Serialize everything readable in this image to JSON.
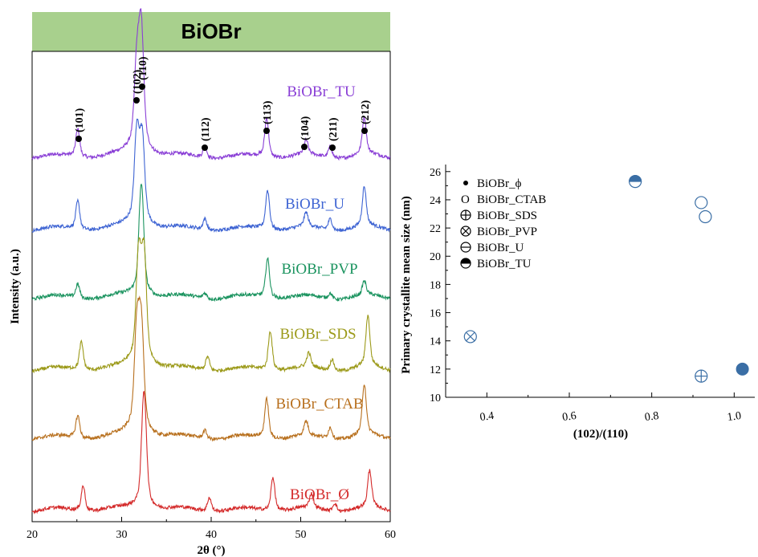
{
  "chart_data": [
    {
      "type": "line",
      "title": "BiOBr",
      "xlabel": "2θ (°)",
      "ylabel": "Intensity (a.u.)",
      "xlim": [
        20,
        60
      ],
      "x_ticks": [
        "20",
        "30",
        "40",
        "50",
        "60"
      ],
      "grid": false,
      "legend": "inline labels",
      "series": [
        {
          "name": "BiOBr_TU",
          "color": "#8A3FD6",
          "peaks": [
            [
              25.1,
              0.1
            ],
            [
              31.7,
              0.3
            ],
            [
              32.2,
              0.42
            ],
            [
              39.3,
              0.04
            ],
            [
              46.2,
              0.14
            ],
            [
              50.6,
              0.05
            ],
            [
              53.3,
              0.04
            ],
            [
              57.1,
              0.13
            ]
          ]
        },
        {
          "name": "BiOBr_U",
          "color": "#3E64D3",
          "peaks": [
            [
              25.1,
              0.1
            ],
            [
              31.7,
              0.32
            ],
            [
              32.3,
              0.3
            ],
            [
              39.3,
              0.04
            ],
            [
              46.3,
              0.14
            ],
            [
              50.6,
              0.05
            ],
            [
              53.3,
              0.04
            ],
            [
              57.1,
              0.14
            ]
          ]
        },
        {
          "name": "BiOBr_PVP",
          "color": "#1C9460",
          "peaks": [
            [
              25.1,
              0.05
            ],
            [
              32.2,
              0.4
            ],
            [
              39.3,
              0.02
            ],
            [
              46.3,
              0.14
            ],
            [
              53.3,
              0.02
            ],
            [
              57.1,
              0.05
            ]
          ]
        },
        {
          "name": "BiOBr_SDS",
          "color": "#9C9A1A",
          "peaks": [
            [
              25.5,
              0.1
            ],
            [
              31.9,
              0.38
            ],
            [
              32.5,
              0.38
            ],
            [
              39.6,
              0.05
            ],
            [
              46.6,
              0.14
            ],
            [
              50.9,
              0.05
            ],
            [
              53.5,
              0.04
            ],
            [
              57.5,
              0.18
            ]
          ]
        },
        {
          "name": "BiOBr_CTAB",
          "color": "#B8701E",
          "peaks": [
            [
              25.1,
              0.08
            ],
            [
              31.7,
              0.36
            ],
            [
              32.2,
              0.36
            ],
            [
              39.3,
              0.03
            ],
            [
              46.2,
              0.14
            ],
            [
              50.6,
              0.05
            ],
            [
              53.3,
              0.04
            ],
            [
              57.1,
              0.18
            ]
          ]
        },
        {
          "name": "BiOBr_Ø",
          "color": "#D42A2A",
          "peaks": [
            [
              25.7,
              0.09
            ],
            [
              32.5,
              0.42
            ],
            [
              39.8,
              0.05
            ],
            [
              46.9,
              0.12
            ],
            [
              51.2,
              0.05
            ],
            [
              53.8,
              0.03
            ],
            [
              57.7,
              0.13
            ]
          ]
        }
      ],
      "annotations": [
        {
          "text": "(101)",
          "x": 25.1
        },
        {
          "text": "(102)",
          "x": 31.6
        },
        {
          "text": "(110)",
          "x": 32.3
        },
        {
          "text": "(112)",
          "x": 39.3
        },
        {
          "text": "(113)",
          "x": 46.2
        },
        {
          "text": "(104)",
          "x": 50.6
        },
        {
          "text": "(211)",
          "x": 53.3
        },
        {
          "text": "(212)",
          "x": 57.1
        }
      ]
    },
    {
      "type": "scatter",
      "xlabel": "(102)/(110)",
      "ylabel": "Primary crystallite mean size (nm)",
      "xlim": [
        0.3,
        1.05
      ],
      "ylim": [
        10,
        26.5
      ],
      "x_ticks": [
        "0.4",
        "0.6",
        "0.8",
        "1.0"
      ],
      "y_ticks": [
        "10",
        "12",
        "14",
        "16",
        "18",
        "20",
        "22",
        "24",
        "26"
      ],
      "grid": false,
      "legend": "top-left",
      "color": "#3A6EA5",
      "points": [
        {
          "name": "BiOBr_ϕ",
          "marker": "filled",
          "x": 1.02,
          "y": 12.0
        },
        {
          "name": "BiOBr_CTAB",
          "marker": "open",
          "x": 0.92,
          "y": 23.8
        },
        {
          "name": "BiOBr_CTAB",
          "marker": "open",
          "x": 0.93,
          "y": 22.8
        },
        {
          "name": "BiOBr_SDS",
          "marker": "plus",
          "x": 0.92,
          "y": 11.5
        },
        {
          "name": "BiOBr_PVP",
          "marker": "cross",
          "x": 0.36,
          "y": 14.3
        },
        {
          "name": "BiOBr_TU",
          "marker": "half",
          "x": 0.76,
          "y": 25.3
        }
      ],
      "legend_entries": [
        {
          "label": "BiOBr_ϕ",
          "marker": "dot"
        },
        {
          "label": "BiOBr_CTAB",
          "marker": "letter",
          "symbol": "O"
        },
        {
          "label": "BiOBr_SDS",
          "marker": "plus"
        },
        {
          "label": "BiOBr_PVP",
          "marker": "cross"
        },
        {
          "label": "BiOBr_U",
          "marker": "bar"
        },
        {
          "label": "BiOBr_TU",
          "marker": "half"
        }
      ]
    }
  ]
}
